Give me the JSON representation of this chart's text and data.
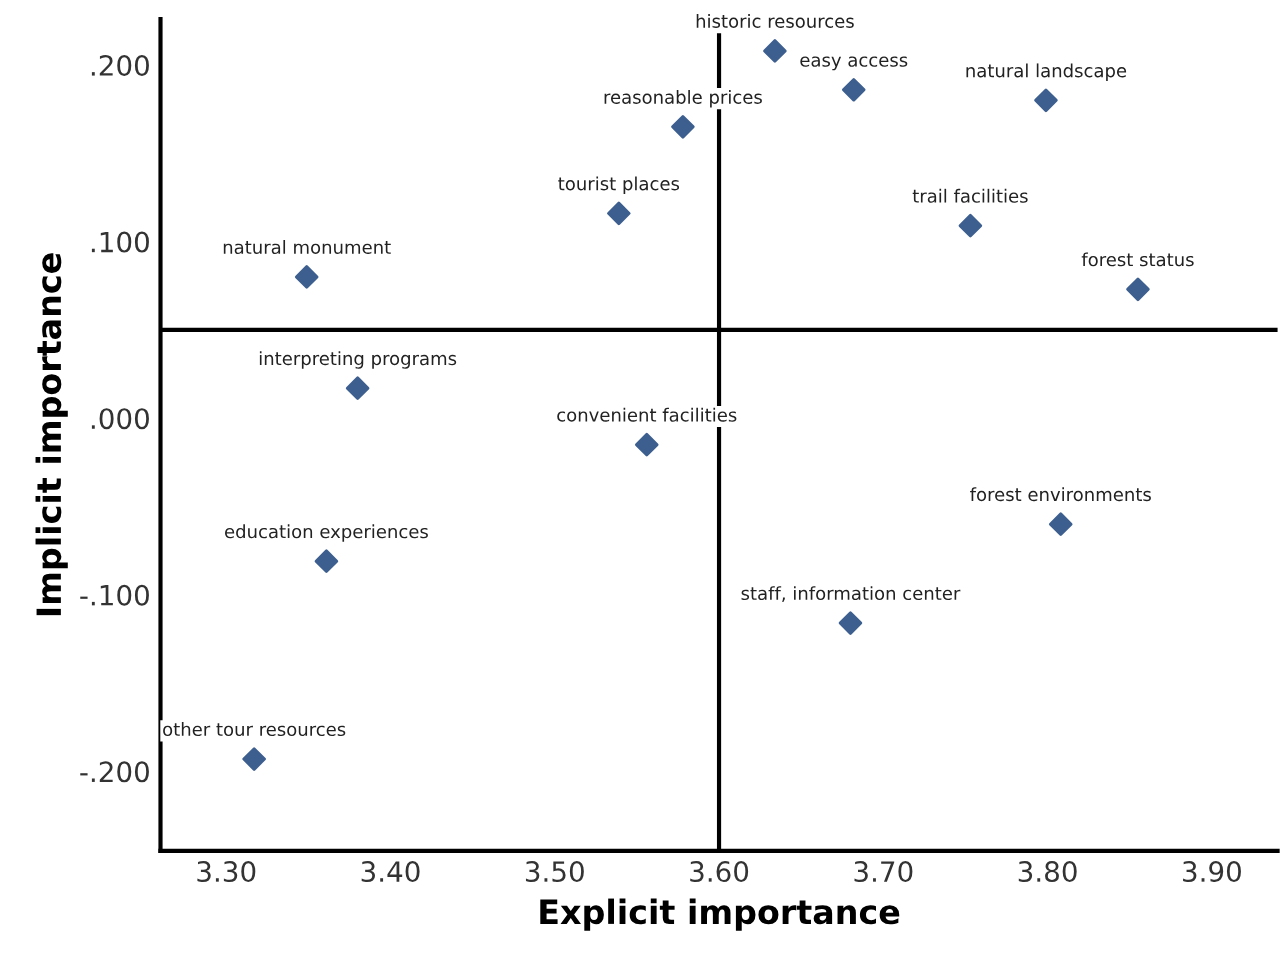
{
  "chart_data": {
    "type": "scatter",
    "xlabel": "Explicit importance",
    "ylabel": "Implicit importance",
    "x": [
      3.349,
      3.539,
      3.578,
      3.38,
      3.556,
      3.361,
      3.317,
      3.634,
      3.682,
      3.799,
      3.753,
      3.855,
      3.808,
      3.68
    ],
    "series": [
      {
        "color": "#3d5f8f",
        "values": [
          0.08,
          0.116,
          0.165,
          0.017,
          -0.015,
          -0.081,
          -0.193,
          0.208,
          0.186,
          0.18,
          0.109,
          0.073,
          -0.06,
          -0.116
        ]
      }
    ],
    "marker": "diamond",
    "grid": false,
    "legend": false,
    "xlim": [
      3.26,
      3.94
    ],
    "ylim": [
      -0.245,
      0.226
    ],
    "xticks": [
      {
        "value": 3.3,
        "label": "3.30"
      },
      {
        "value": 3.4,
        "label": "3.40"
      },
      {
        "value": 3.5,
        "label": "3.50"
      },
      {
        "value": 3.6,
        "label": "3.60"
      },
      {
        "value": 3.7,
        "label": "3.70"
      },
      {
        "value": 3.8,
        "label": "3.80"
      },
      {
        "value": 3.9,
        "label": "3.90"
      }
    ],
    "yticks": [
      {
        "value": -0.2,
        "label": "-.200"
      },
      {
        "value": -0.1,
        "label": "-.100"
      },
      {
        "value": 0,
        "label": ".000"
      },
      {
        "value": 0.1,
        "label": ".100"
      },
      {
        "value": 0.2,
        "label": ".200"
      }
    ],
    "ref_lines": [
      {
        "axis": "x",
        "value": 3.6,
        "color": "#000000"
      },
      {
        "axis": "y",
        "value": 0.05,
        "color": "#000000"
      }
    ],
    "annotations": [
      {
        "text": "natural monument",
        "x": 3.349,
        "y": 0.08
      },
      {
        "text": "tourist places",
        "x": 3.539,
        "y": 0.116
      },
      {
        "text": "reasonable prices",
        "x": 3.578,
        "y": 0.165
      },
      {
        "text": "interpreting programs",
        "x": 3.38,
        "y": 0.017
      },
      {
        "text": "convenient facilities",
        "x": 3.556,
        "y": -0.015
      },
      {
        "text": "education experiences",
        "x": 3.361,
        "y": -0.081
      },
      {
        "text": "other tour resources",
        "x": 3.317,
        "y": -0.193
      },
      {
        "text": "historic resources",
        "x": 3.634,
        "y": 0.208
      },
      {
        "text": "easy access",
        "x": 3.682,
        "y": 0.186
      },
      {
        "text": "natural landscape",
        "x": 3.799,
        "y": 0.18
      },
      {
        "text": "trail facilities",
        "x": 3.753,
        "y": 0.109
      },
      {
        "text": "forest status",
        "x": 3.855,
        "y": 0.073
      },
      {
        "text": "forest environments",
        "x": 3.808,
        "y": -0.06
      },
      {
        "text": "staff, information center",
        "x": 3.68,
        "y": -0.116
      }
    ]
  }
}
